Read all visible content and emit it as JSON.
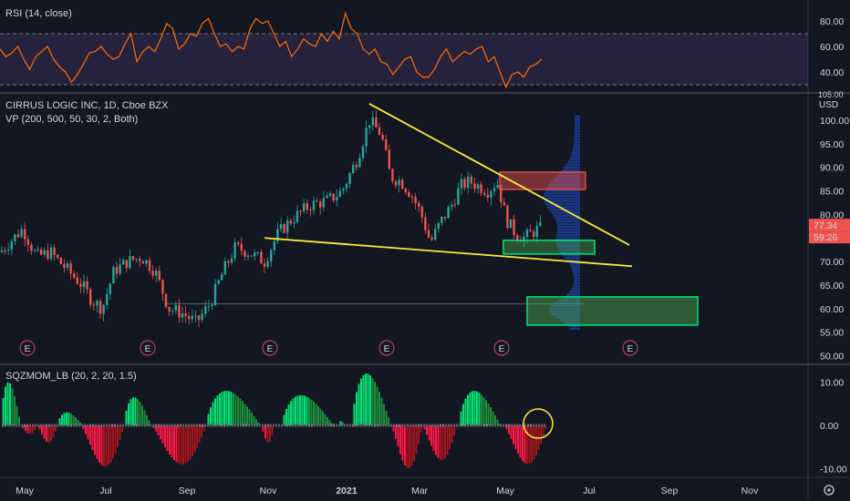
{
  "rsi": {
    "title": "RSI (14, close)",
    "ticks": [
      "80.00",
      "60.00",
      "40.00"
    ],
    "tick_values": [
      80,
      60,
      40
    ],
    "ylim": [
      25,
      95
    ],
    "bands": [
      30,
      70
    ],
    "band_color": "#7e57c2",
    "line_color": "#ff6d00",
    "values": [
      58,
      52,
      55,
      60,
      50,
      42,
      52,
      56,
      60,
      50,
      44,
      40,
      32,
      38,
      46,
      55,
      56,
      60,
      54,
      50,
      52,
      62,
      70,
      48,
      56,
      60,
      56,
      66,
      78,
      74,
      58,
      62,
      70,
      68,
      78,
      82,
      70,
      60,
      62,
      56,
      60,
      58,
      74,
      82,
      78,
      80,
      70,
      60,
      64,
      52,
      58,
      66,
      62,
      60,
      70,
      64,
      72,
      66,
      86,
      74,
      70,
      58,
      54,
      58,
      48,
      46,
      38,
      44,
      50,
      52,
      40,
      36,
      36,
      42,
      52,
      58,
      48,
      52,
      56,
      54,
      58,
      60,
      48,
      52,
      40,
      28,
      38,
      40,
      36,
      44,
      46,
      50
    ]
  },
  "price": {
    "title": "CIRRUS LOGIC INC, 1D, Cboe BZX",
    "indicator": "VP (200, 500, 50, 30, 2, Both)",
    "currency": "USD",
    "top_tick": "105.00",
    "ticks": [
      "100.00",
      "95.00",
      "90.00",
      "85.00",
      "80.00",
      "75.00",
      "70.00",
      "65.00",
      "60.00",
      "55.00",
      "50.00"
    ],
    "tick_values": [
      100,
      95,
      90,
      85,
      80,
      75,
      70,
      65,
      60,
      55,
      50
    ],
    "ylim": [
      49,
      105
    ],
    "last_price": "77.34",
    "countdown": "59:26",
    "earnings_marker": "E",
    "bull_color": "#26a69a",
    "bear_color": "#ef5350",
    "trendline_color": "#ffeb3b"
  },
  "sqz": {
    "title": "SQZMOM_LB (20, 2, 20, 1.5)",
    "ticks": [
      "10.00",
      "0.00",
      "-10.00"
    ],
    "tick_values": [
      10,
      0,
      -10
    ],
    "ylim": [
      -11.5,
      12.5
    ]
  },
  "time_axis": {
    "labels": [
      "May",
      "Jul",
      "Sep",
      "Nov",
      "2021",
      "Mar",
      "May",
      "Jul",
      "Sep",
      "Nov"
    ]
  },
  "chart_data": {
    "type": "candlestick",
    "title": "CIRRUS LOGIC INC, 1D, Cboe BZX",
    "ylabel": "USD",
    "close_approx": [
      {
        "x": "May",
        "y": 71
      },
      {
        "x": "Jul",
        "y": 65
      },
      {
        "x": "Sep",
        "y": 58
      },
      {
        "x": "Nov",
        "y": 73
      },
      {
        "x": "2021",
        "y": 100
      },
      {
        "x": "Mar",
        "y": 75
      },
      {
        "x": "May",
        "y": 84
      },
      {
        "x": "Jun",
        "y": 77.34
      }
    ],
    "ylim": [
      50,
      105
    ]
  },
  "toolbar": {
    "settings_icon": "gear-icon"
  }
}
